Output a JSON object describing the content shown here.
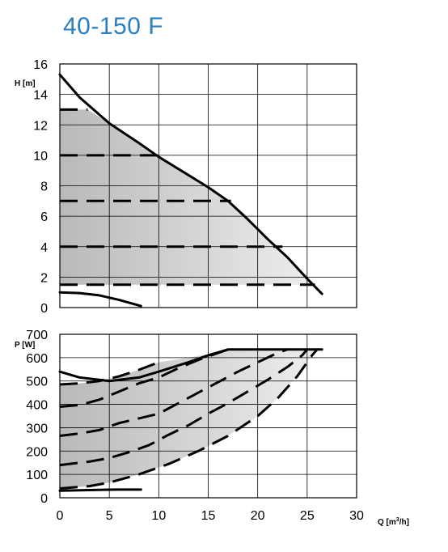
{
  "title": "40-150 F",
  "colors": {
    "curve": "#000000",
    "grid": "#000000",
    "shade_dark": "#b9b9bb",
    "shade_light": "#eeeef0",
    "title": "#2a7fc0"
  },
  "chart_data": [
    {
      "id": "head",
      "type": "line",
      "ylabel": "H [m]",
      "xlim": [
        0,
        30
      ],
      "ylim": [
        0,
        16
      ],
      "xticks": [
        0,
        5,
        10,
        15,
        20,
        25,
        30
      ],
      "yticks": [
        0,
        2,
        4,
        6,
        8,
        10,
        12,
        14,
        16
      ],
      "grid": true,
      "series": [
        {
          "role": "max-curve",
          "dash": false,
          "points": [
            [
              0,
              15.3
            ],
            [
              2,
              13.8
            ],
            [
              5,
              12.1
            ],
            [
              8,
              10.8
            ],
            [
              10,
              9.9
            ],
            [
              13,
              8.7
            ],
            [
              15,
              7.9
            ],
            [
              17,
              7.0
            ],
            [
              19,
              5.8
            ],
            [
              21,
              4.5
            ],
            [
              23,
              3.3
            ],
            [
              25,
              1.9
            ],
            [
              26.5,
              0.9
            ]
          ]
        },
        {
          "role": "setpoint-13",
          "dash": true,
          "points": [
            [
              0,
              13
            ],
            [
              2.8,
              13
            ]
          ]
        },
        {
          "role": "setpoint-10",
          "dash": true,
          "points": [
            [
              0,
              10
            ],
            [
              10,
              10
            ]
          ]
        },
        {
          "role": "setpoint-7",
          "dash": true,
          "points": [
            [
              0,
              7
            ],
            [
              17.3,
              7
            ]
          ]
        },
        {
          "role": "setpoint-4",
          "dash": true,
          "points": [
            [
              0,
              4
            ],
            [
              22.5,
              4
            ]
          ]
        },
        {
          "role": "setpoint-1.5",
          "dash": true,
          "points": [
            [
              0,
              1.5
            ],
            [
              25.8,
              1.5
            ]
          ]
        },
        {
          "role": "min-curve",
          "dash": false,
          "points": [
            [
              0,
              1.0
            ],
            [
              2,
              0.95
            ],
            [
              4,
              0.8
            ],
            [
              6,
              0.5
            ],
            [
              8.2,
              0.1
            ]
          ]
        }
      ],
      "shaded_region": [
        [
          0,
          13
        ],
        [
          2.8,
          13
        ],
        [
          5,
          12.1
        ],
        [
          8,
          10.8
        ],
        [
          10,
          9.9
        ],
        [
          13,
          8.7
        ],
        [
          15,
          7.9
        ],
        [
          17,
          7.0
        ],
        [
          19,
          5.8
        ],
        [
          21,
          4.5
        ],
        [
          23,
          3.3
        ],
        [
          25.8,
          1.5
        ],
        [
          0,
          1.5
        ]
      ]
    },
    {
      "id": "power",
      "type": "line",
      "xlabel": "Q [m³/h]",
      "xlabel_main": "Q [m",
      "xlabel_sup": "3",
      "xlabel_end": "/h]",
      "ylabel": "P [W]",
      "xlim": [
        0,
        30
      ],
      "ylim": [
        0,
        700
      ],
      "xticks": [
        0,
        5,
        10,
        15,
        20,
        25,
        30
      ],
      "yticks": [
        0,
        100,
        200,
        300,
        400,
        500,
        600,
        700
      ],
      "grid": true,
      "series": [
        {
          "role": "max-curve",
          "dash": false,
          "points": [
            [
              0,
              540
            ],
            [
              2,
              515
            ],
            [
              5,
              500
            ],
            [
              8,
              515
            ],
            [
              10,
              540
            ],
            [
              13,
              580
            ],
            [
              15,
              610
            ],
            [
              17,
              635
            ],
            [
              26.5,
              635
            ]
          ]
        },
        {
          "role": "setpoint-13",
          "dash": true,
          "points": [
            [
              0,
              485
            ],
            [
              2,
              490
            ],
            [
              4,
              500
            ],
            [
              6,
              520
            ],
            [
              8,
              548
            ],
            [
              10,
              580
            ]
          ]
        },
        {
          "role": "setpoint-10",
          "dash": true,
          "points": [
            [
              0,
              390
            ],
            [
              2,
              397
            ],
            [
              4,
              420
            ],
            [
              6,
              455
            ],
            [
              8,
              490
            ],
            [
              10,
              515
            ],
            [
              12,
              555
            ],
            [
              14,
              590
            ],
            [
              16,
              620
            ],
            [
              17,
              635
            ]
          ]
        },
        {
          "role": "setpoint-7",
          "dash": true,
          "points": [
            [
              0,
              265
            ],
            [
              2,
              275
            ],
            [
              4,
              290
            ],
            [
              6,
              320
            ],
            [
              8,
              340
            ],
            [
              10,
              360
            ],
            [
              12,
              405
            ],
            [
              14,
              450
            ],
            [
              16,
              495
            ],
            [
              18,
              540
            ],
            [
              20,
              580
            ],
            [
              22,
              620
            ],
            [
              23,
              635
            ]
          ]
        },
        {
          "role": "setpoint-4",
          "dash": true,
          "points": [
            [
              0,
              140
            ],
            [
              3,
              155
            ],
            [
              5,
              170
            ],
            [
              7,
              195
            ],
            [
              9,
              225
            ],
            [
              11,
              270
            ],
            [
              13,
              310
            ],
            [
              15,
              360
            ],
            [
              17,
              405
            ],
            [
              19,
              455
            ],
            [
              21,
              505
            ],
            [
              23,
              560
            ],
            [
              24.5,
              610
            ],
            [
              25,
              635
            ]
          ]
        },
        {
          "role": "setpoint-1.5",
          "dash": true,
          "points": [
            [
              0,
              40
            ],
            [
              3,
              50
            ],
            [
              5,
              65
            ],
            [
              8,
              100
            ],
            [
              11,
              145
            ],
            [
              14,
              200
            ],
            [
              17,
              265
            ],
            [
              20,
              350
            ],
            [
              22,
              425
            ],
            [
              24,
              520
            ],
            [
              25.5,
              610
            ],
            [
              26,
              635
            ]
          ]
        },
        {
          "role": "min-curve",
          "dash": false,
          "points": [
            [
              0,
              30
            ],
            [
              2,
              32
            ],
            [
              4,
              34
            ],
            [
              6,
              35
            ],
            [
              8.2,
              35
            ]
          ]
        }
      ],
      "shaded_region": [
        [
          0,
          485
        ],
        [
          2,
          490
        ],
        [
          4,
          500
        ],
        [
          6,
          520
        ],
        [
          8,
          548
        ],
        [
          10,
          580
        ],
        [
          13,
          600
        ],
        [
          15,
          615
        ],
        [
          17,
          635
        ],
        [
          26,
          635
        ],
        [
          25.5,
          610
        ],
        [
          24,
          520
        ],
        [
          22,
          425
        ],
        [
          20,
          350
        ],
        [
          17,
          265
        ],
        [
          14,
          200
        ],
        [
          11,
          145
        ],
        [
          8,
          100
        ],
        [
          5,
          65
        ],
        [
          3,
          50
        ],
        [
          0,
          40
        ]
      ]
    }
  ]
}
